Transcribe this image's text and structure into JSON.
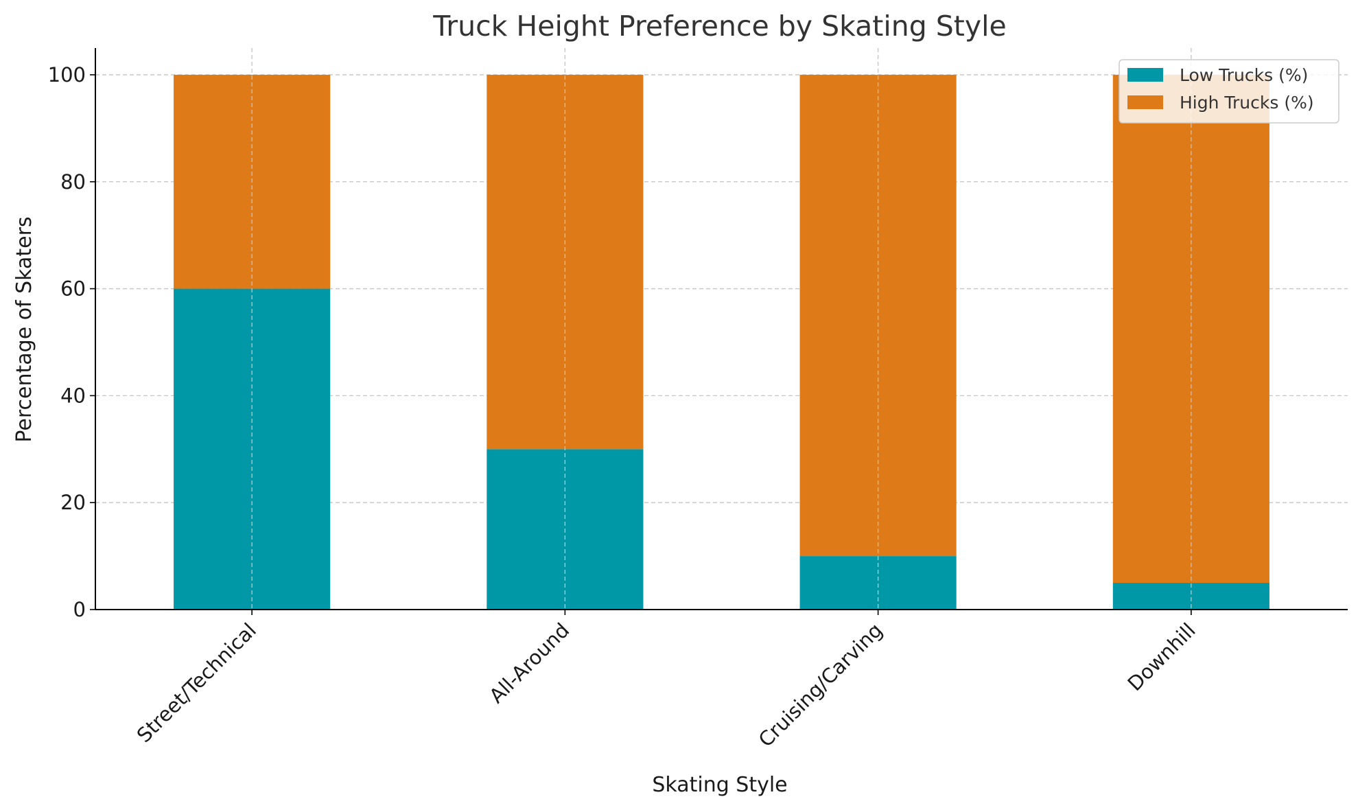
{
  "chart_data": {
    "type": "bar",
    "stacked": true,
    "title": "Truck Height Preference by Skating Style",
    "xlabel": "Skating Style",
    "ylabel": "Percentage of Skaters",
    "categories": [
      "Street/Technical",
      "All-Around",
      "Cruising/Carving",
      "Downhill"
    ],
    "series": [
      {
        "name": "Low Trucks (%)",
        "color": "#0097a7",
        "values": [
          60,
          30,
          10,
          5
        ]
      },
      {
        "name": "High Trucks (%)",
        "color": "#df7a18",
        "values": [
          40,
          70,
          90,
          95
        ]
      }
    ],
    "ylim": [
      0,
      105
    ],
    "yticks": [
      0,
      20,
      40,
      60,
      80,
      100
    ],
    "grid": true,
    "legend_position": "top-right"
  }
}
